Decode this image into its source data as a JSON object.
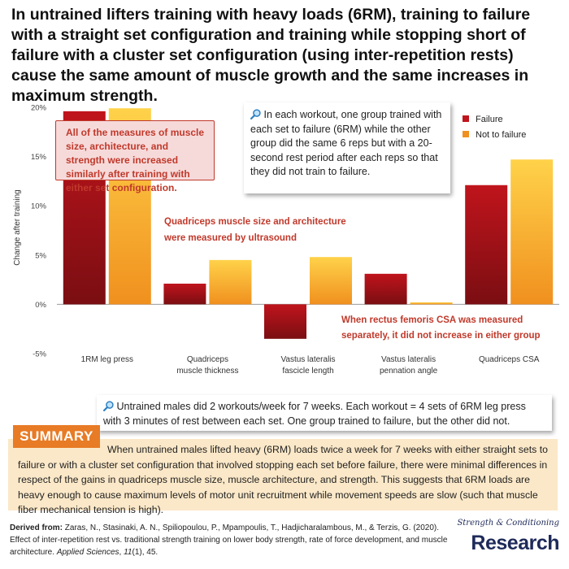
{
  "headline": "In untrained lifters training with heavy loads (6RM), training to failure with a straight set configuration and training while stopping short of failure with a cluster set configuration (using inter-repetition rests) cause the same amount of muscle growth and the same increases in maximum strength.",
  "chart_data": {
    "type": "bar",
    "ylabel": "Change after training",
    "ylim": [
      -5,
      20
    ],
    "yticks": [
      -5,
      0,
      5,
      10,
      15,
      20
    ],
    "ytick_labels": [
      "-5%",
      "0%",
      "5%",
      "10%",
      "15%",
      "20%"
    ],
    "categories": [
      "1RM leg press",
      "Quadriceps muscle thickness",
      "Vastus lateralis fascicle length",
      "Vastus lateralis pennation angle",
      "Quadriceps CSA"
    ],
    "category_lines": [
      [
        "1RM leg press"
      ],
      [
        "Quadriceps",
        "muscle thickness"
      ],
      [
        "Vastus lateralis",
        "fascicle length"
      ],
      [
        "Vastus lateralis",
        "pennation angle"
      ],
      [
        "Quadriceps CSA"
      ]
    ],
    "series": [
      {
        "name": "Failure",
        "values": [
          19.6,
          2.1,
          -3.5,
          3.1,
          12.1
        ]
      },
      {
        "name": "Not to failure",
        "values": [
          19.9,
          4.5,
          4.8,
          0.2,
          14.7
        ]
      }
    ],
    "legend_position": "top-right",
    "grid": false
  },
  "notes": {
    "pink_box": "All of the measures of muscle size, architecture, and strength were increased similarly after training with either set configuration.",
    "ultrasound_lines": [
      "Quadriceps muscle size and architecture",
      "were measured by ultrasound"
    ],
    "rectus_lines": [
      "When rectus femoris CSA was measured",
      "separately, it did not increase in either group"
    ],
    "info_box_1": "In each workout, one group trained with each set to failure (6RM) while the other group did the same 6 reps but with a 20-second rest period after each reps so that they did not train to failure.",
    "info_box_2": "Untrained males did 2 workouts/week for 7 weeks. Each workout = 4 sets of 6RM leg press with 3 minutes of rest between each set. One group trained to failure, but the other did not."
  },
  "summary": {
    "label": "SUMMARY",
    "text": "When untrained males lifted heavy (6RM) loads twice a week for 7 weeks with either straight sets to failure or with a cluster set configuration that involved stopping each set before failure, there were minimal differences in respect of the gains in quadriceps muscle size, muscle architecture, and strength. This suggests that 6RM loads are heavy enough to cause maximum levels of motor unit recruitment while movement speeds are slow (such that muscle fiber mechanical tension is high)."
  },
  "citation": {
    "prefix": "Derived from:",
    "authors": "Zaras, N., Stasinaki, A. N., Spiliopoulou, P., Mpampoulis, T., Hadjicharalambous, M., & Terzis, G. (2020). Effect of inter-repetition rest vs. traditional strength training on lower body strength, rate of force development, and muscle architecture.",
    "journal": "Applied Sciences",
    "volume": "11",
    "issue_pages": "(1), 45."
  },
  "brand": {
    "top": "Strength & Conditioning",
    "bottom": "Research"
  },
  "colors": {
    "failure_top": "#c0141c",
    "failure_bottom": "#7a0e12",
    "notfail_top": "#ffd24a",
    "notfail_bottom": "#f0901e",
    "accent_red": "#c0392b",
    "summary_orange": "#e87b25",
    "summary_bg": "#fbe8c8",
    "brand_navy": "#1e2a5a"
  },
  "icons": {
    "info": "magnifier-icon"
  }
}
